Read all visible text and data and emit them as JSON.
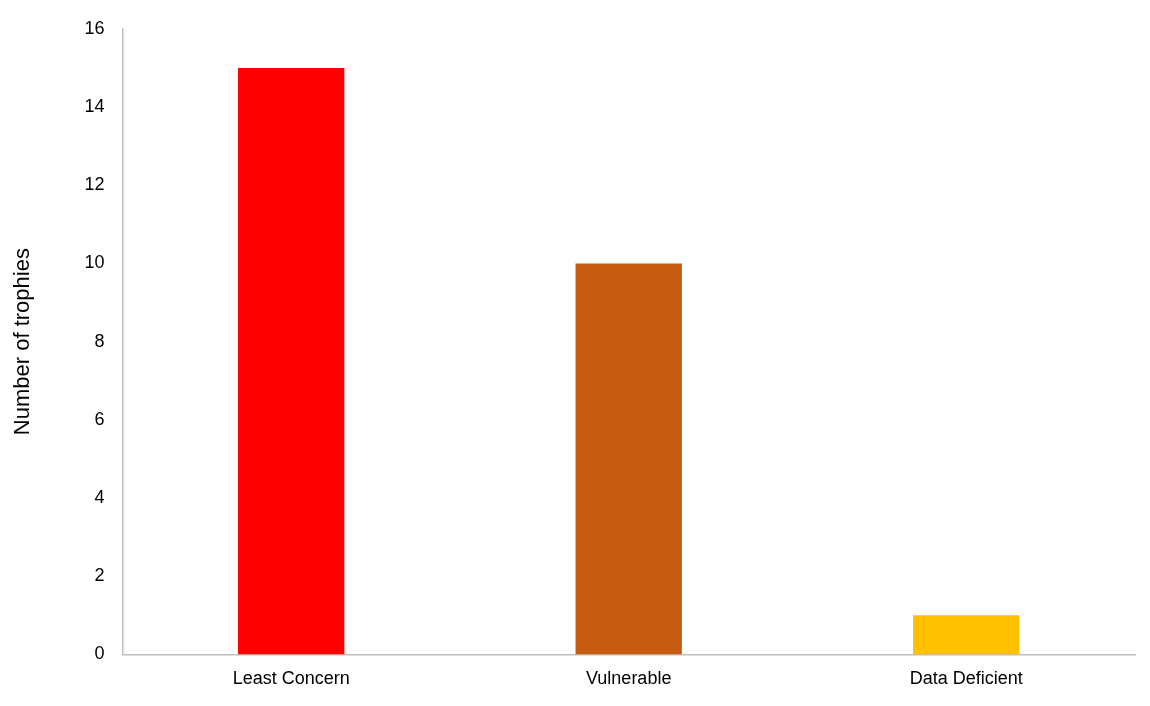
{
  "chart_data": {
    "type": "bar",
    "ylabel": "Number of trophies",
    "categories": [
      "Least Concern",
      "Vulnerable",
      "Data Deficient"
    ],
    "values": [
      15,
      10,
      1
    ],
    "colors": [
      "#ff0000",
      "#c55a11",
      "#ffc000"
    ],
    "ylim": [
      0,
      16
    ],
    "yticks": [
      0,
      2,
      4,
      6,
      8,
      10,
      12,
      14,
      16
    ],
    "grid": false,
    "legend": false
  }
}
